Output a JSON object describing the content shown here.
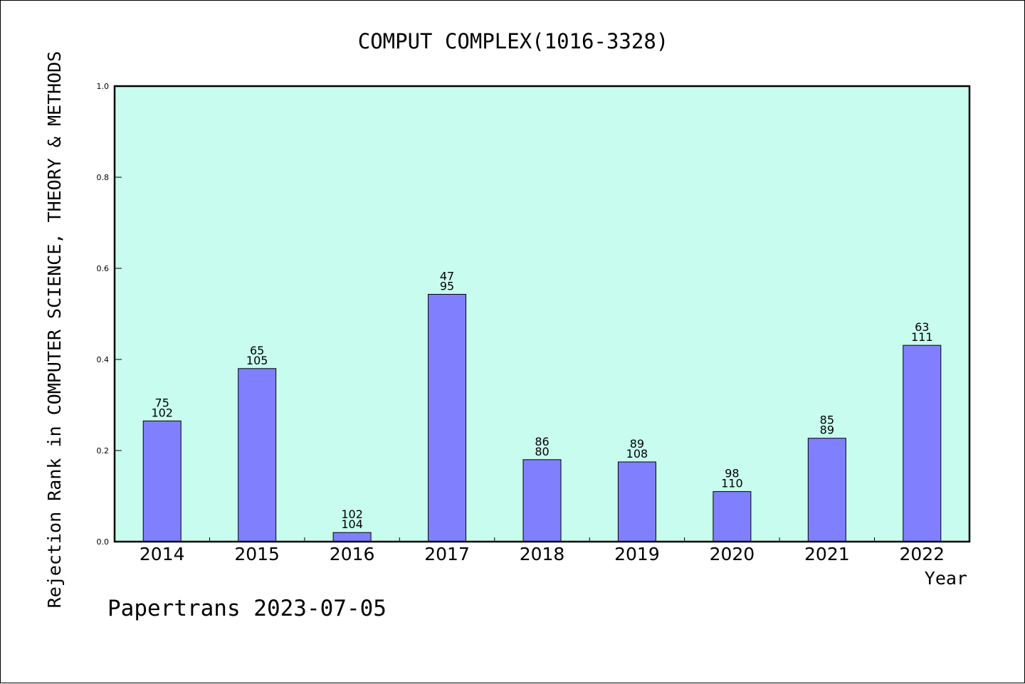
{
  "chart_data": {
    "type": "bar",
    "title": "COMPUT COMPLEX(1016-3328)",
    "xlabel": "Year",
    "ylabel": "Rejection Rank in COMPUTER SCIENCE, THEORY & METHODS",
    "ylim": [
      0,
      1.0
    ],
    "yticks": [
      "0.0",
      "0.2",
      "0.4",
      "0.6",
      "0.8",
      "1.0"
    ],
    "grid": false,
    "categories": [
      "2014",
      "2015",
      "2016",
      "2017",
      "2018",
      "2019",
      "2020",
      "2021",
      "2022"
    ],
    "values": [
      0.265,
      0.38,
      0.02,
      0.543,
      0.18,
      0.175,
      0.11,
      0.227,
      0.431
    ],
    "label_top": [
      "75",
      "65",
      "102",
      "47",
      "86",
      "89",
      "98",
      "85",
      "63"
    ],
    "label_bottom": [
      "102",
      "105",
      "104",
      "95",
      "80",
      "108",
      "110",
      "89",
      "111"
    ],
    "colors": {
      "plot_background": "#c8fcee",
      "bar_fill": "#8080ff",
      "bar_stroke": "#000000",
      "axis": "#000000"
    }
  },
  "footer": "Papertrans 2023-07-05"
}
